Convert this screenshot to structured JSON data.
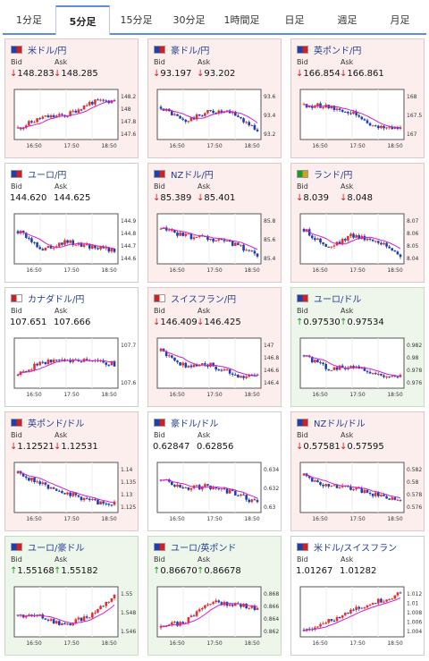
{
  "tabs": [
    "1分足",
    "5分足",
    "15分足",
    "30分足",
    "1時間足",
    "日足",
    "週足",
    "月足"
  ],
  "active_tab": 1,
  "labels": {
    "bid": "Bid",
    "ask": "Ask"
  },
  "colors": {
    "up": "#1a9a2a",
    "down": "#d02020",
    "candle_up": "#e03030",
    "candle_down": "#1e3fb0",
    "ma": "#d020d0"
  },
  "cards": [
    {
      "title": "米ドル/円",
      "flag": [
        "#1e3fb0",
        "#d02020"
      ],
      "bg": "down",
      "dir": "down",
      "bid": "148.283",
      "ask": "148.285",
      "yticks": [
        "148.2",
        "148",
        "147.8",
        "147.6"
      ],
      "xticks": [
        "16:50",
        "17:50",
        "18:50"
      ],
      "trend": [
        0.2,
        0.45,
        0.5,
        0.8,
        0.85
      ]
    },
    {
      "title": "豪ドル/円",
      "flag": [
        "#1e3fb0",
        "#d02020"
      ],
      "bg": "down",
      "dir": "down",
      "bid": "93.197",
      "ask": "93.202",
      "yticks": [
        "93.6",
        "93.4",
        "93.2"
      ],
      "xticks": [
        "16:50",
        "17:50",
        "18:50"
      ],
      "trend": [
        0.7,
        0.35,
        0.6,
        0.55,
        0.15
      ]
    },
    {
      "title": "英ポンド/円",
      "flag": [
        "#1e3fb0",
        "#d02020"
      ],
      "bg": "down",
      "dir": "down",
      "bid": "166.854",
      "ask": "166.861",
      "yticks": [
        "168",
        "167.5",
        "167"
      ],
      "xticks": [
        "16:50",
        "17:50",
        "18:50"
      ],
      "trend": [
        0.75,
        0.7,
        0.55,
        0.2,
        0.25
      ]
    },
    {
      "title": "ユーロ/円",
      "flag": [
        "#1e3fb0",
        "#d02020"
      ],
      "bg": "plain",
      "dir": "none",
      "bid": "144.620",
      "ask": "144.625",
      "yticks": [
        "144.9",
        "144.8",
        "144.7",
        "144.6"
      ],
      "xticks": [
        "16:50",
        "17:50",
        "18:50"
      ],
      "trend": [
        0.7,
        0.3,
        0.45,
        0.35,
        0.25
      ]
    },
    {
      "title": "NZドル/円",
      "flag": [
        "#1e3fb0",
        "#d02020"
      ],
      "bg": "down",
      "dir": "down",
      "bid": "85.389",
      "ask": "85.401",
      "yticks": [
        "85.8",
        "85.6",
        "85.4"
      ],
      "xticks": [
        "16:50",
        "17:50",
        "18:50"
      ],
      "trend": [
        0.75,
        0.6,
        0.5,
        0.4,
        0.15
      ]
    },
    {
      "title": "ランド/円",
      "flag": [
        "#1a9a2a",
        "#d0a020"
      ],
      "bg": "down",
      "dir": "down",
      "bid": "8.039",
      "ask": "8.048",
      "yticks": [
        "8.07",
        "8.06",
        "8.05",
        "8.04"
      ],
      "xticks": [
        "16:50",
        "17:50",
        "18:50"
      ],
      "trend": [
        0.75,
        0.3,
        0.6,
        0.5,
        0.15
      ]
    },
    {
      "title": "カナダドル/円",
      "flag": [
        "#d02020",
        "#ffffff"
      ],
      "bg": "plain",
      "dir": "none",
      "bid": "107.651",
      "ask": "107.666",
      "yticks": [
        "107.7",
        "107.6"
      ],
      "xticks": [
        "16:50",
        "17:50",
        "18:50"
      ],
      "trend": [
        0.25,
        0.55,
        0.6,
        0.6,
        0.5
      ]
    },
    {
      "title": "スイスフラン/円",
      "flag": [
        "#d02020",
        "#ffffff"
      ],
      "bg": "down",
      "dir": "down",
      "bid": "146.409",
      "ask": "146.425",
      "yticks": [
        "147",
        "146.8",
        "146.6",
        "146.4"
      ],
      "xticks": [
        "16:50",
        "17:50",
        "18:50"
      ],
      "trend": [
        0.8,
        0.45,
        0.5,
        0.25,
        0.2
      ]
    },
    {
      "title": "ユーロ/ドル",
      "flag": [
        "#1e3fb0",
        "#d02020"
      ],
      "bg": "up",
      "dir": "up",
      "bid": "0.97530",
      "ask": "0.97534",
      "yticks": [
        "0.982",
        "0.98",
        "0.978",
        "0.976"
      ],
      "xticks": [
        "16:50",
        "17:50",
        "18:50"
      ],
      "trend": [
        0.7,
        0.4,
        0.45,
        0.25,
        0.2
      ]
    },
    {
      "title": "英ポンド/ドル",
      "flag": [
        "#1e3fb0",
        "#d02020"
      ],
      "bg": "down",
      "dir": "down",
      "bid": "1.12521",
      "ask": "1.12531",
      "yticks": [
        "1.14",
        "1.135",
        "1.13",
        "1.125"
      ],
      "xticks": [
        "16:50",
        "17:50",
        "18:50"
      ],
      "trend": [
        0.85,
        0.6,
        0.4,
        0.2,
        0.15
      ]
    },
    {
      "title": "豪ドル/ドル",
      "flag": [
        "#1e3fb0",
        "#d02020"
      ],
      "bg": "plain",
      "dir": "none",
      "bid": "0.62847",
      "ask": "0.62856",
      "yticks": [
        "0.634",
        "0.632",
        "0.63"
      ],
      "xticks": [
        "16:50",
        "17:50",
        "18:50"
      ],
      "trend": [
        0.7,
        0.5,
        0.55,
        0.4,
        0.15
      ]
    },
    {
      "title": "NZドル/ドル",
      "flag": [
        "#1e3fb0",
        "#d02020"
      ],
      "bg": "down",
      "dir": "down",
      "bid": "0.57581",
      "ask": "0.57595",
      "yticks": [
        "0.582",
        "0.58",
        "0.578",
        "0.576"
      ],
      "xticks": [
        "16:50",
        "17:50",
        "18:50"
      ],
      "trend": [
        0.8,
        0.55,
        0.5,
        0.35,
        0.2
      ]
    },
    {
      "title": "ユーロ/豪ドル",
      "flag": [
        "#1e3fb0",
        "#d02020"
      ],
      "bg": "up",
      "dir": "up",
      "bid": "1.55168",
      "ask": "1.55182",
      "yticks": [
        "1.55",
        "1.548",
        "1.546"
      ],
      "xticks": [
        "16:50",
        "17:50",
        "18:50"
      ],
      "trend": [
        0.45,
        0.4,
        0.2,
        0.45,
        0.9
      ]
    },
    {
      "title": "ユーロ/英ポンド",
      "flag": [
        "#1e3fb0",
        "#d02020"
      ],
      "bg": "up",
      "dir": "up",
      "bid": "0.86670",
      "ask": "0.86678",
      "yticks": [
        "0.868",
        "0.866",
        "0.864",
        "0.862"
      ],
      "xticks": [
        "16:50",
        "17:50",
        "18:50"
      ],
      "trend": [
        0.15,
        0.3,
        0.75,
        0.7,
        0.6
      ]
    },
    {
      "title": "米ドル/スイスフラン",
      "flag": [
        "#1e3fb0",
        "#d02020"
      ],
      "bg": "plain",
      "dir": "none",
      "bid": "1.01267",
      "ask": "1.01282",
      "yticks": [
        "1.012",
        "1.01",
        "1.008",
        "1.006",
        "1.004"
      ],
      "xticks": [
        "16:50",
        "17:50",
        "18:50"
      ],
      "trend": [
        0.1,
        0.3,
        0.55,
        0.75,
        0.95
      ]
    }
  ]
}
